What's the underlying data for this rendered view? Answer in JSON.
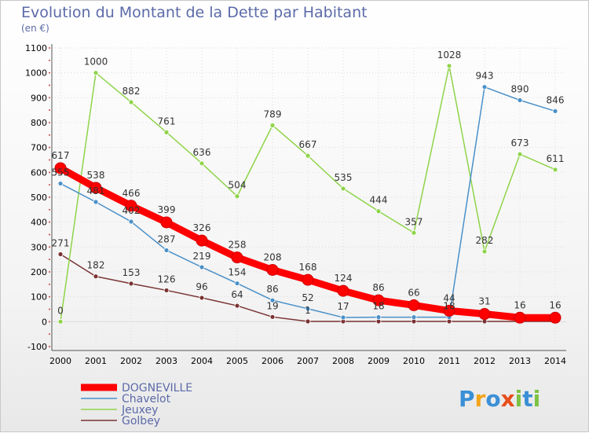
{
  "title": "Evolution du Montant de la Dette par Habitant",
  "unit": "(en €)",
  "logo": {
    "letters": [
      {
        "ch": "P",
        "color": "#3a8fd6"
      },
      {
        "ch": "r",
        "color": "#f2a51a"
      },
      {
        "ch": "o",
        "color": "#3a8fd6"
      },
      {
        "ch": "x",
        "color": "#e84e1b"
      },
      {
        "ch": "i",
        "color": "#7cc242"
      },
      {
        "ch": "t",
        "color": "#3a8fd6"
      },
      {
        "ch": "i",
        "color": "#7cc242"
      }
    ]
  },
  "chart_data": {
    "type": "line",
    "x": [
      2000,
      2001,
      2002,
      2003,
      2004,
      2005,
      2006,
      2007,
      2008,
      2009,
      2010,
      2011,
      2012,
      2013,
      2014
    ],
    "ylim": [
      -100,
      1100
    ],
    "yticks": [
      -100,
      0,
      100,
      200,
      300,
      400,
      500,
      600,
      700,
      800,
      900,
      1000,
      1100
    ],
    "grid": true,
    "legend_position": "bottom-left",
    "series": [
      {
        "name": "DOGNEVILLE",
        "color": "#ff0000",
        "values": [
          617,
          538,
          466,
          399,
          326,
          258,
          208,
          168,
          124,
          86,
          66,
          44,
          31,
          16,
          16
        ],
        "labels": [
          "617",
          "538",
          "466",
          "399",
          "326",
          "258",
          "208",
          "168",
          "124",
          "86",
          "66",
          "44",
          "31",
          "16",
          "16"
        ]
      },
      {
        "name": "Chavelot",
        "color": "#4a90c8",
        "values": [
          555,
          481,
          402,
          287,
          219,
          154,
          86,
          52,
          17,
          18,
          18,
          18,
          943,
          890,
          846
        ],
        "labels": [
          "555",
          "481",
          "402",
          "287",
          "219",
          "154",
          "86",
          "52",
          "17",
          "18",
          "",
          "18",
          "943",
          "890",
          "846"
        ]
      },
      {
        "name": "Jeuxey",
        "color": "#8fd44a",
        "values": [
          0,
          1000,
          882,
          761,
          636,
          504,
          789,
          667,
          535,
          444,
          357,
          1028,
          282,
          673,
          611
        ],
        "labels": [
          "0",
          "1000",
          "882",
          "761",
          "636",
          "504",
          "789",
          "667",
          "535",
          "444",
          "357",
          "1028",
          "282",
          "673",
          "611"
        ]
      },
      {
        "name": "Golbey",
        "color": "#7a3232",
        "values": [
          271,
          182,
          153,
          126,
          96,
          64,
          19,
          1,
          1,
          1,
          1,
          1,
          1,
          1,
          1
        ],
        "labels": [
          "271",
          "182",
          "153",
          "126",
          "96",
          "64",
          "19",
          "1",
          "",
          "",
          "",
          "",
          "",
          "",
          ""
        ]
      }
    ]
  }
}
